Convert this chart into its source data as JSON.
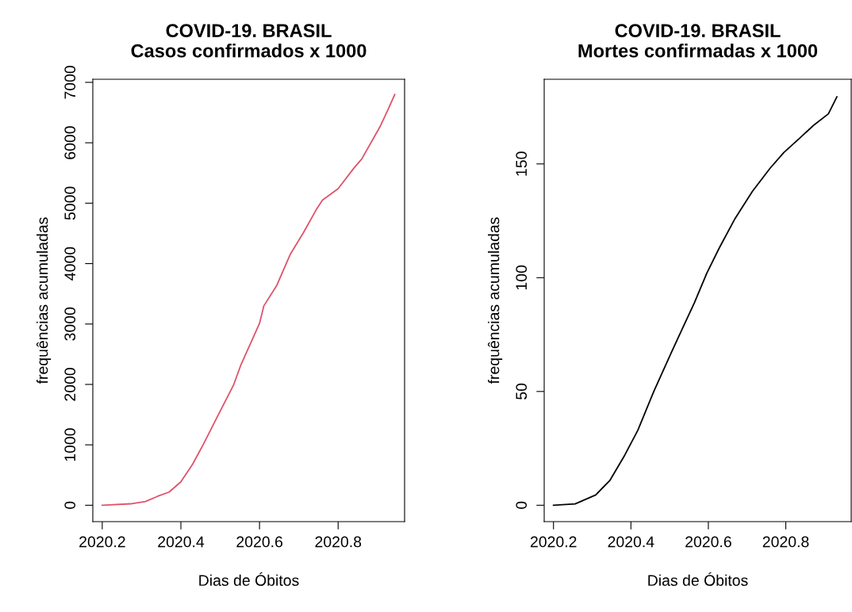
{
  "chart_data": [
    {
      "type": "line",
      "title": "COVID-19. BRASIL\nCasos confirmados x 1000",
      "xlabel": "Dias de Óbitos",
      "ylabel": "frequências acumuladas",
      "color": "#df536b",
      "x": [
        2020.2,
        2020.272,
        2020.31,
        2020.34,
        2020.37,
        2020.4,
        2020.43,
        2020.458,
        2020.492,
        2020.534,
        2020.553,
        2020.58,
        2020.6,
        2020.611,
        2020.644,
        2020.678,
        2020.712,
        2020.745,
        2020.76,
        2020.8,
        2020.84,
        2020.86,
        2020.906,
        2020.927,
        2020.944
      ],
      "values": [
        0,
        24,
        63,
        146,
        218,
        388,
        680,
        1019,
        1456,
        1990,
        2330,
        2720,
        3010,
        3300,
        3640,
        4150,
        4515,
        4900,
        5050,
        5240,
        5580,
        5730,
        6260,
        6550,
        6800
      ],
      "xlim": [
        2020.176,
        2020.969
      ],
      "ylim": [
        -271,
        7051
      ],
      "xticks": [
        2020.2,
        2020.4,
        2020.6,
        2020.8
      ],
      "yticks": [
        0,
        1000,
        2000,
        3000,
        4000,
        5000,
        6000,
        7000
      ],
      "grid": false
    },
    {
      "type": "line",
      "title": "COVID-19. BRASIL\nMortes confirmadas x 1000",
      "xlabel": "Dias de Óbitos",
      "ylabel": "frequências acumuladas",
      "color": "#000000",
      "x": [
        2020.2,
        2020.256,
        2020.309,
        2020.346,
        2020.384,
        2020.418,
        2020.459,
        2020.504,
        2020.534,
        2020.564,
        2020.596,
        2020.628,
        2020.669,
        2020.714,
        2020.759,
        2020.795,
        2020.834,
        2020.872,
        2020.91,
        2020.932
      ],
      "values": [
        0,
        0.6,
        4.5,
        11,
        22,
        33,
        50,
        67,
        78,
        89,
        102,
        113,
        126,
        138,
        148,
        155,
        161,
        167,
        172,
        179.5
      ],
      "xlim": [
        2020.176,
        2020.969
      ],
      "ylim": [
        -7.2,
        187.2
      ],
      "xticks": [
        2020.2,
        2020.4,
        2020.6,
        2020.8
      ],
      "yticks": [
        0,
        50,
        100,
        150
      ],
      "grid": false
    }
  ]
}
